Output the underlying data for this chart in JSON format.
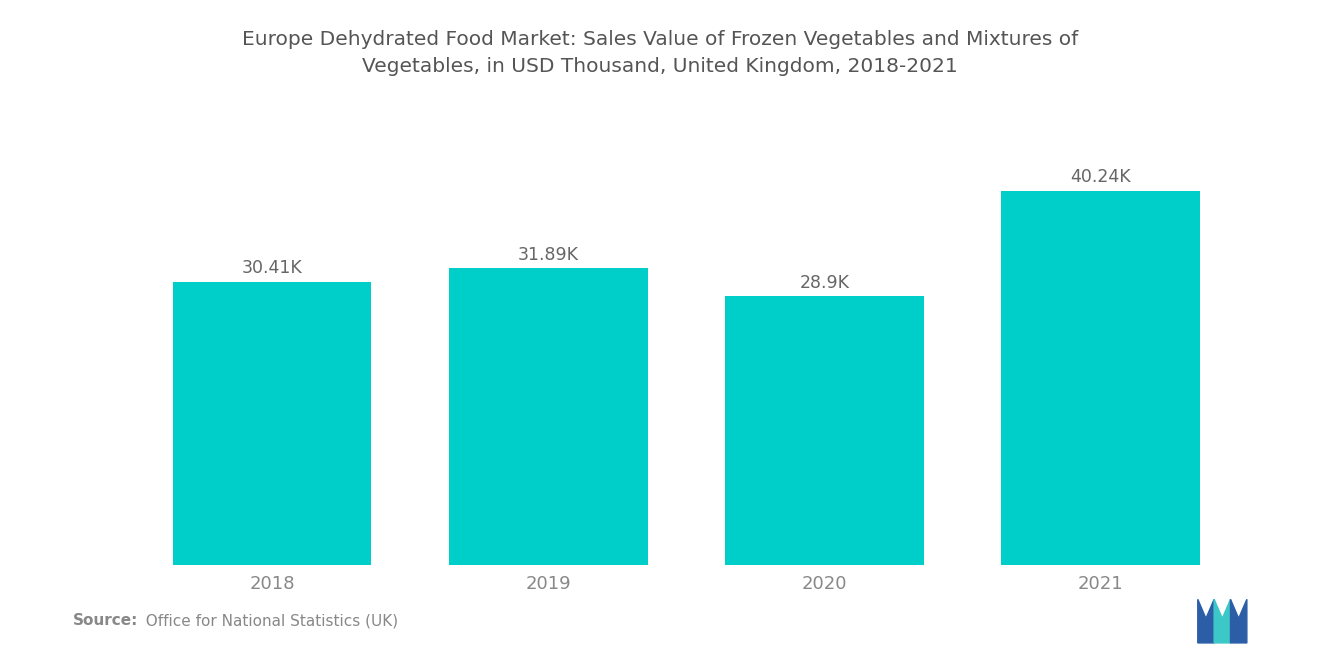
{
  "title_line1": "Europe Dehydrated Food Market: Sales Value of Frozen Vegetables and Mixtures of",
  "title_line2": "Vegetables, in USD Thousand, United Kingdom, 2018-2021",
  "categories": [
    "2018",
    "2019",
    "2020",
    "2021"
  ],
  "values": [
    30.41,
    31.89,
    28.9,
    40.24
  ],
  "labels": [
    "30.41K",
    "31.89K",
    "28.9K",
    "40.24K"
  ],
  "bar_color": "#00CEC9",
  "background_color": "#ffffff",
  "title_color": "#555555",
  "label_color": "#666666",
  "tick_color": "#888888",
  "source_bold": "Source:",
  "source_rest": "  Office for National Statistics (UK)",
  "ylim": [
    0,
    50
  ],
  "title_fontsize": 14.5,
  "label_fontsize": 12.5,
  "tick_fontsize": 13,
  "source_fontsize": 11,
  "bar_width": 0.72,
  "logo_blue": "#2B5EA7",
  "logo_teal": "#3DC8C8"
}
